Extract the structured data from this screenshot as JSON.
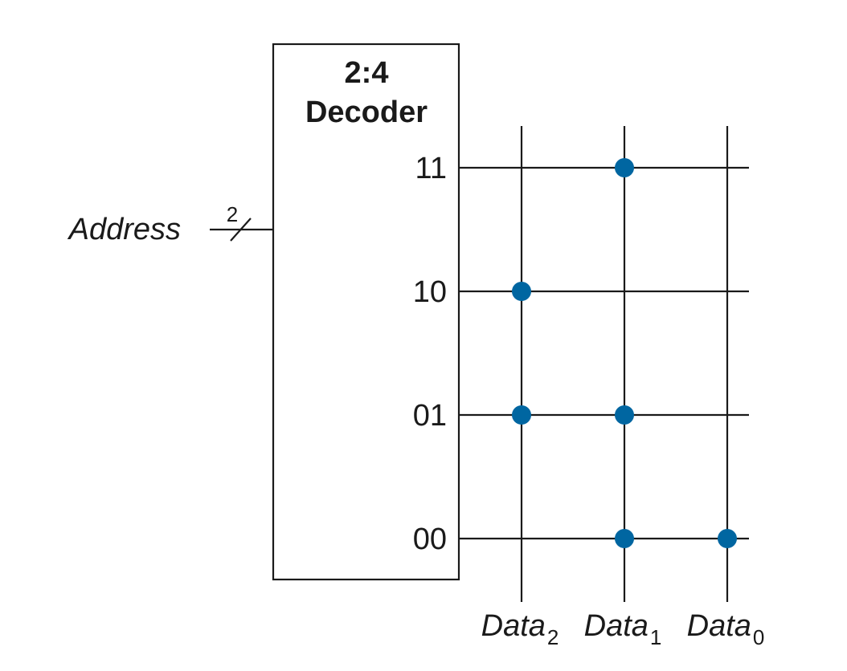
{
  "decoder": {
    "ratio": "2:4",
    "name": "Decoder"
  },
  "address": {
    "label": "Address",
    "bus_width": "2"
  },
  "word_lines": [
    {
      "address": "11"
    },
    {
      "address": "10"
    },
    {
      "address": "01"
    },
    {
      "address": "00"
    }
  ],
  "bit_lines": [
    {
      "name": "Data",
      "index": "2"
    },
    {
      "name": "Data",
      "index": "1"
    },
    {
      "name": "Data",
      "index": "0"
    }
  ],
  "stored_bits": {
    "11": [
      0,
      1,
      0
    ],
    "10": [
      1,
      0,
      0
    ],
    "01": [
      1,
      1,
      0
    ],
    "00": [
      0,
      1,
      1
    ]
  },
  "colors": {
    "dot": "#0066a1",
    "line": "#1a1a1a"
  }
}
